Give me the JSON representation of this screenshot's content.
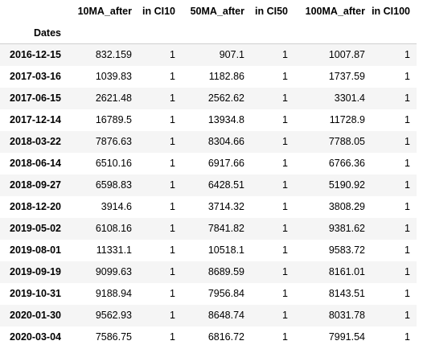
{
  "table": {
    "columns": [
      "10MA_after",
      "in CI10",
      "50MA_after",
      "in CI50",
      "100MA_after",
      "in CI100"
    ],
    "index_name": "Dates",
    "rows": [
      {
        "date": "2016-12-15",
        "cells": [
          "832.159",
          "1",
          "907.1",
          "1",
          "1007.87",
          "1"
        ]
      },
      {
        "date": "2017-03-16",
        "cells": [
          "1039.83",
          "1",
          "1182.86",
          "1",
          "1737.59",
          "1"
        ]
      },
      {
        "date": "2017-06-15",
        "cells": [
          "2621.48",
          "1",
          "2562.62",
          "1",
          "3301.4",
          "1"
        ]
      },
      {
        "date": "2017-12-14",
        "cells": [
          "16789.5",
          "1",
          "13934.8",
          "1",
          "11728.9",
          "1"
        ]
      },
      {
        "date": "2018-03-22",
        "cells": [
          "7876.63",
          "1",
          "8304.66",
          "1",
          "7788.05",
          "1"
        ]
      },
      {
        "date": "2018-06-14",
        "cells": [
          "6510.16",
          "1",
          "6917.66",
          "1",
          "6766.36",
          "1"
        ]
      },
      {
        "date": "2018-09-27",
        "cells": [
          "6598.83",
          "1",
          "6428.51",
          "1",
          "5190.92",
          "1"
        ]
      },
      {
        "date": "2018-12-20",
        "cells": [
          "3914.6",
          "1",
          "3714.32",
          "1",
          "3808.29",
          "1"
        ]
      },
      {
        "date": "2019-05-02",
        "cells": [
          "6108.16",
          "1",
          "7841.82",
          "1",
          "9381.62",
          "1"
        ]
      },
      {
        "date": "2019-08-01",
        "cells": [
          "11331.1",
          "1",
          "10518.1",
          "1",
          "9583.72",
          "1"
        ]
      },
      {
        "date": "2019-09-19",
        "cells": [
          "9099.63",
          "1",
          "8689.59",
          "1",
          "8161.01",
          "1"
        ]
      },
      {
        "date": "2019-10-31",
        "cells": [
          "9188.94",
          "1",
          "7956.84",
          "1",
          "8143.51",
          "1"
        ]
      },
      {
        "date": "2020-01-30",
        "cells": [
          "9562.93",
          "1",
          "8648.74",
          "1",
          "8031.78",
          "1"
        ]
      },
      {
        "date": "2020-03-04",
        "cells": [
          "7586.75",
          "1",
          "6816.72",
          "1",
          "7991.54",
          "1"
        ]
      }
    ]
  },
  "colors": {
    "row_stripe": "#f5f5f5",
    "background": "#ffffff",
    "header_rule": "#cfcfcf"
  }
}
